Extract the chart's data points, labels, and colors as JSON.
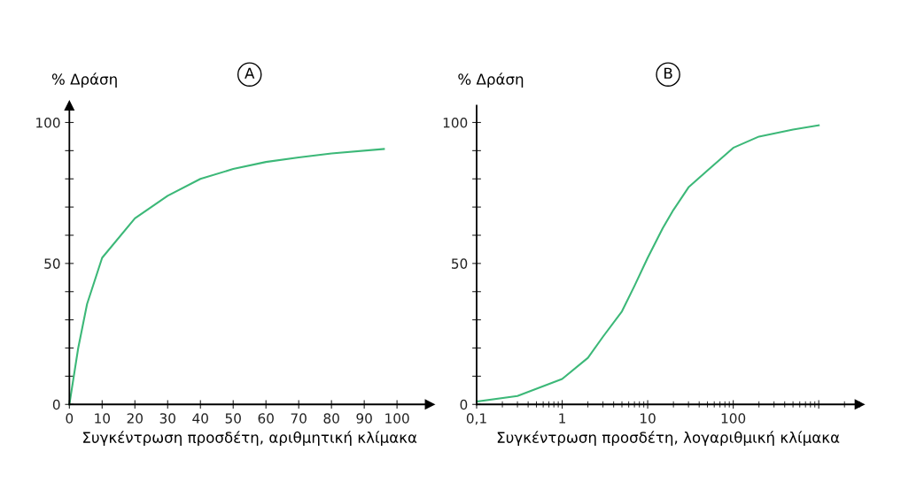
{
  "chart_data": [
    {
      "type": "line",
      "title": "A",
      "ylabel": "% Δράση",
      "xlabel": "Συγκέντρωση προσδέτη, αριθμητική κλίμακα",
      "x": [
        0,
        2.7,
        5.4,
        10,
        20,
        30,
        40,
        50,
        60,
        70,
        80,
        96
      ],
      "series": [
        {
          "color": "#3cb878",
          "values": [
            0,
            20,
            35.6,
            52,
            66,
            74,
            80,
            83.5,
            86,
            87.6,
            89,
            90.6
          ]
        }
      ],
      "xlim": [
        0,
        110
      ],
      "ylim": [
        0,
        106
      ],
      "xticks": [
        0,
        10,
        20,
        30,
        40,
        50,
        60,
        70,
        80,
        90,
        100
      ],
      "yticks": [
        0,
        {
          "value": 10,
          "label": null
        },
        {
          "value": 20,
          "label": null
        },
        {
          "value": 30,
          "label": null
        },
        {
          "value": 40,
          "label": null
        },
        50,
        {
          "value": 60,
          "label": null
        },
        {
          "value": 70,
          "label": null
        },
        {
          "value": 80,
          "label": null
        },
        {
          "value": 90,
          "label": null
        },
        100
      ],
      "grid": false,
      "legend": false
    },
    {
      "type": "line",
      "title": "B",
      "ylabel": "% Δράση",
      "xlabel": "Συγκέντρωση προσδέτη, λογαριθμική κλίμακα",
      "log": "x",
      "x": [
        0.1,
        0.3,
        1,
        2,
        3,
        5,
        7,
        10,
        15,
        20,
        30,
        50,
        100,
        200,
        500,
        1000
      ],
      "series": [
        {
          "color": "#3cb878",
          "values": [
            1,
            3,
            9,
            16.5,
            24,
            33,
            42,
            52,
            62.5,
            69,
            77,
            83,
            91,
            95,
            97.5,
            99
          ]
        }
      ],
      "xlim": [
        0.1,
        3000
      ],
      "ylim": [
        0,
        106
      ],
      "xticks": [
        {
          "value": 0.1,
          "label": "0,1"
        },
        1,
        10,
        100,
        {
          "value": 1000,
          "label": null
        }
      ],
      "yticks": [
        0,
        {
          "value": 10,
          "label": null
        },
        {
          "value": 20,
          "label": null
        },
        {
          "value": 30,
          "label": null
        },
        {
          "value": 40,
          "label": null
        },
        50,
        {
          "value": 60,
          "label": null
        },
        {
          "value": 70,
          "label": null
        },
        {
          "value": 80,
          "label": null
        },
        {
          "value": 90,
          "label": null
        },
        100
      ],
      "grid": false,
      "legend": false
    }
  ]
}
